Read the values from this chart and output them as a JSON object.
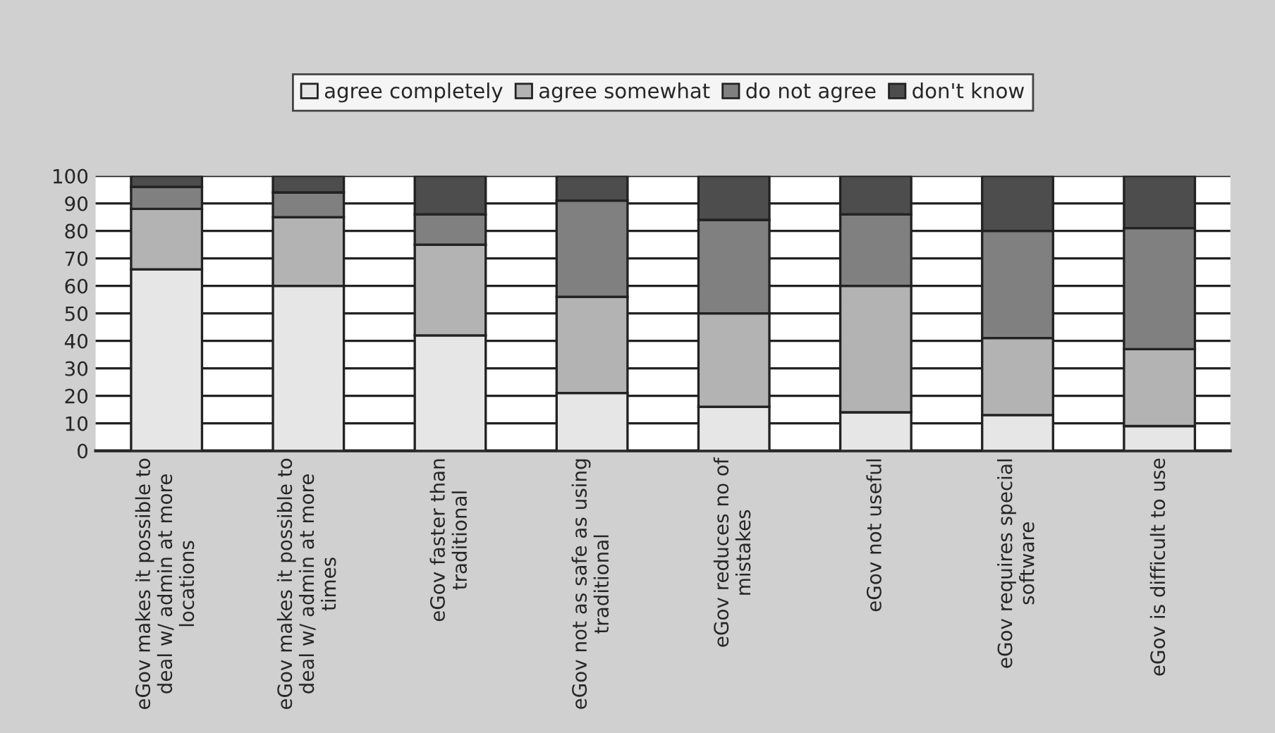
{
  "chart_data": {
    "type": "bar",
    "stacked": true,
    "categories": [
      "eGov makes it possible to\ndeal w/ admin at more\nlocations",
      "eGov makes it possible to\ndeal w/ admin at more\ntimes",
      "eGov faster than\ntraditional",
      "eGov not as safe as using\ntraditional",
      "eGov reduces no of\nmistakes",
      "eGov not useful",
      "eGov requires special\nsoftware",
      "eGov is difficult to use"
    ],
    "series": [
      {
        "name": "agree completely",
        "color": "#e6e6e6",
        "values": [
          66,
          60,
          42,
          21,
          16,
          14,
          13,
          9
        ]
      },
      {
        "name": "agree somewhat",
        "color": "#b3b3b3",
        "values": [
          22,
          25,
          33,
          35,
          34,
          46,
          28,
          28
        ]
      },
      {
        "name": "do not agree",
        "color": "#808080",
        "values": [
          8,
          9,
          11,
          35,
          34,
          26,
          39,
          44
        ]
      },
      {
        "name": "don't know",
        "color": "#4d4d4d",
        "values": [
          4,
          6,
          14,
          9,
          16,
          14,
          20,
          19
        ]
      }
    ],
    "ylim": [
      0,
      100
    ],
    "yticks": [
      0,
      10,
      20,
      30,
      40,
      50,
      60,
      70,
      80,
      90,
      100
    ],
    "grid": "y",
    "legend": "top"
  }
}
